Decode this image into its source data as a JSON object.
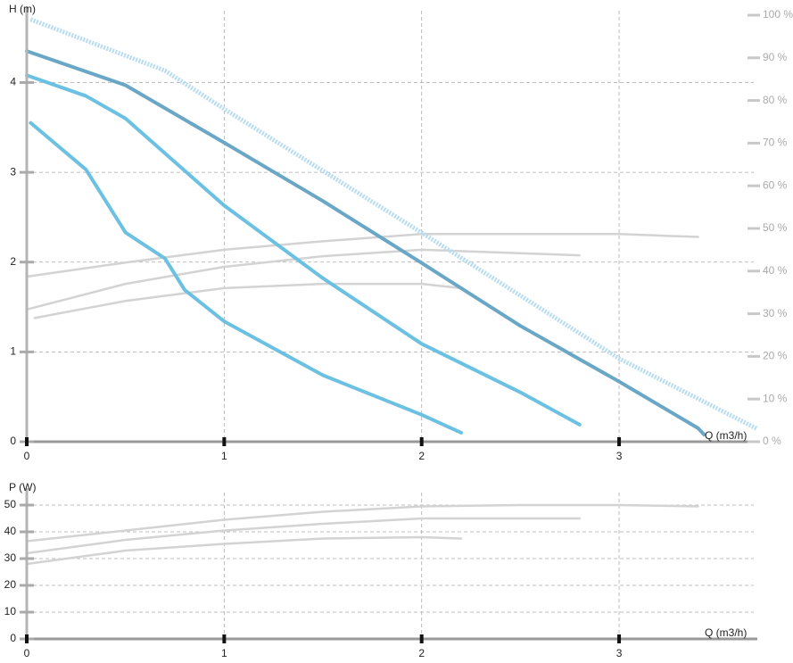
{
  "chart_data": [
    {
      "type": "line",
      "ylabel": "H (m)",
      "xlabel": "Q (m3/h)",
      "xlim": [
        0,
        3.7
      ],
      "xticks": [
        0,
        1,
        2,
        3
      ],
      "ylim": [
        0,
        4.75
      ],
      "yticks": [
        0,
        1,
        2,
        3,
        4
      ],
      "y2lim": [
        0,
        100
      ],
      "y2ticks": [
        {
          "value": 0,
          "label": "0 %"
        },
        {
          "value": 10,
          "label": "10 %"
        },
        {
          "value": 20,
          "label": "20 %"
        },
        {
          "value": 30,
          "label": "30 %"
        },
        {
          "value": 40,
          "label": "40 %"
        },
        {
          "value": 50,
          "label": "50 %"
        },
        {
          "value": 60,
          "label": "60 %"
        },
        {
          "value": 70,
          "label": "70 %"
        },
        {
          "value": 80,
          "label": "80 %"
        },
        {
          "value": 90,
          "label": "90 %"
        },
        {
          "value": 100,
          "label": "100 %"
        }
      ],
      "grid": true,
      "series": [
        {
          "color": "#d3d3d3",
          "axis": "y2",
          "x": [
            0,
            0.5,
            1,
            1.5,
            2,
            2.5,
            3,
            3.4
          ],
          "values": [
            38.7,
            42,
            45,
            47,
            48.7,
            48.7,
            48.7,
            48
          ]
        },
        {
          "color": "#d3d3d3",
          "axis": "y2",
          "x": [
            0,
            0.5,
            1,
            1.5,
            2,
            2.8
          ],
          "values": [
            31,
            37,
            41,
            43.5,
            45,
            43.7
          ]
        },
        {
          "color": "#d3d3d3",
          "axis": "y2",
          "x": [
            0.04,
            0.5,
            1,
            1.5,
            2,
            2.2
          ],
          "values": [
            29,
            33,
            36,
            37,
            37,
            36
          ]
        },
        {
          "color": "#b8dcef",
          "axis": "y2",
          "style": "dotted",
          "x": [
            0.02,
            0.7,
            1,
            2,
            3,
            3.7
          ],
          "values": [
            99,
            87,
            78,
            49,
            19.5,
            3
          ]
        },
        {
          "color": "#6aa7c6",
          "x": [
            0,
            0.5,
            1,
            1.5,
            2,
            2.5,
            3,
            3.4,
            3.43
          ],
          "values": [
            4.35,
            3.97,
            3.33,
            2.68,
            1.99,
            1.29,
            0.67,
            0.15,
            0.08
          ]
        },
        {
          "color": "#6cc1e2",
          "x": [
            0,
            0.3,
            0.5,
            1,
            1.5,
            2,
            2.5,
            2.8
          ],
          "values": [
            4.08,
            3.85,
            3.6,
            2.63,
            1.82,
            1.09,
            0.55,
            0.19
          ]
        },
        {
          "color": "#6cc1e2",
          "x": [
            0.02,
            0.3,
            0.5,
            0.7,
            0.8,
            1,
            1.5,
            2,
            2.2
          ],
          "values": [
            3.55,
            3.03,
            2.33,
            2.04,
            1.69,
            1.34,
            0.74,
            0.3,
            0.1
          ]
        }
      ]
    },
    {
      "type": "line",
      "ylabel": "P (W)",
      "xlabel": "Q (m3/h)",
      "xlim": [
        0,
        3.7
      ],
      "xticks": [
        0,
        1,
        2,
        3
      ],
      "ylim": [
        0,
        53
      ],
      "yticks": [
        0,
        10,
        20,
        30,
        40,
        50
      ],
      "grid": true,
      "series": [
        {
          "color": "#d3d3d3",
          "x": [
            0,
            0.5,
            1,
            1.5,
            2,
            2.5,
            3,
            3.4
          ],
          "values": [
            36.5,
            40.5,
            44.5,
            47.5,
            49.5,
            50,
            50,
            49.5
          ]
        },
        {
          "color": "#d3d3d3",
          "x": [
            0,
            0.5,
            1,
            1.5,
            2,
            2.8
          ],
          "values": [
            32,
            37,
            40.5,
            43,
            45,
            45
          ]
        },
        {
          "color": "#d3d3d3",
          "x": [
            0,
            0.5,
            1,
            1.5,
            2,
            2.2
          ],
          "values": [
            28,
            33,
            35.5,
            37.5,
            38,
            37.5
          ]
        }
      ]
    }
  ]
}
